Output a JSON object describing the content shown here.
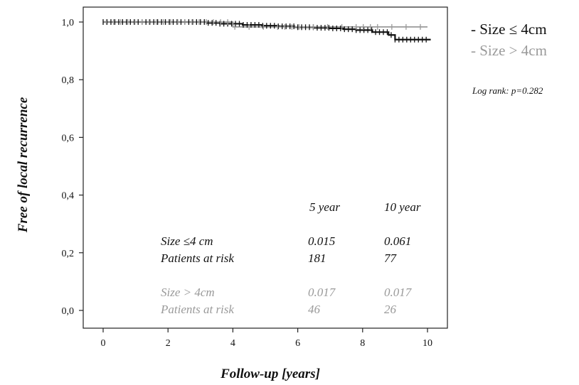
{
  "chart_data": {
    "type": "line",
    "title": "",
    "xlabel": "Follow-up [years]",
    "ylabel": "Free of local recurrence",
    "xlim": [
      0,
      10
    ],
    "ylim": [
      0,
      1
    ],
    "x_ticks": [
      "0",
      "2",
      "4",
      "6",
      "8",
      "10"
    ],
    "y_ticks": [
      "0,0",
      "0,2",
      "0,4",
      "0,6",
      "0,8",
      "1,0"
    ],
    "grid": false,
    "legend_position": "top-right outside",
    "series": [
      {
        "name": "Size ≤ 4cm",
        "legend_label": "- Size ≤ 4cm",
        "color": "#111111",
        "x": [
          0,
          2.5,
          3.2,
          3.6,
          4.3,
          4.9,
          5.4,
          5.9,
          6.5,
          7.0,
          7.4,
          7.8,
          8.3,
          8.8,
          9.0,
          10.1
        ],
        "y": [
          1.0,
          1.0,
          0.997,
          0.994,
          0.99,
          0.987,
          0.985,
          0.982,
          0.98,
          0.978,
          0.975,
          0.972,
          0.965,
          0.955,
          0.939,
          0.939
        ]
      },
      {
        "name": "Size > 4cm",
        "legend_label": "- Size > 4cm",
        "color": "#9a9a9a",
        "x": [
          0,
          3.5,
          4.0,
          10.0
        ],
        "y": [
          1.0,
          1.0,
          0.983,
          0.983
        ]
      }
    ],
    "annotation": "Log rank: p=0.282",
    "risk_table": {
      "headers": [
        "5 year",
        "10 year"
      ],
      "rows": [
        {
          "label": "Size ≤4 cm",
          "values": [
            "0.015",
            "0.061"
          ],
          "color": "#111111"
        },
        {
          "label": "Patients at risk",
          "values": [
            "181",
            "77"
          ],
          "color": "#111111"
        },
        {
          "label": "Size > 4cm",
          "values": [
            "0.017",
            "0.017"
          ],
          "color": "#9a9a9a"
        },
        {
          "label": "Patients at risk",
          "values": [
            "46",
            "26"
          ],
          "color": "#9a9a9a"
        }
      ]
    }
  }
}
